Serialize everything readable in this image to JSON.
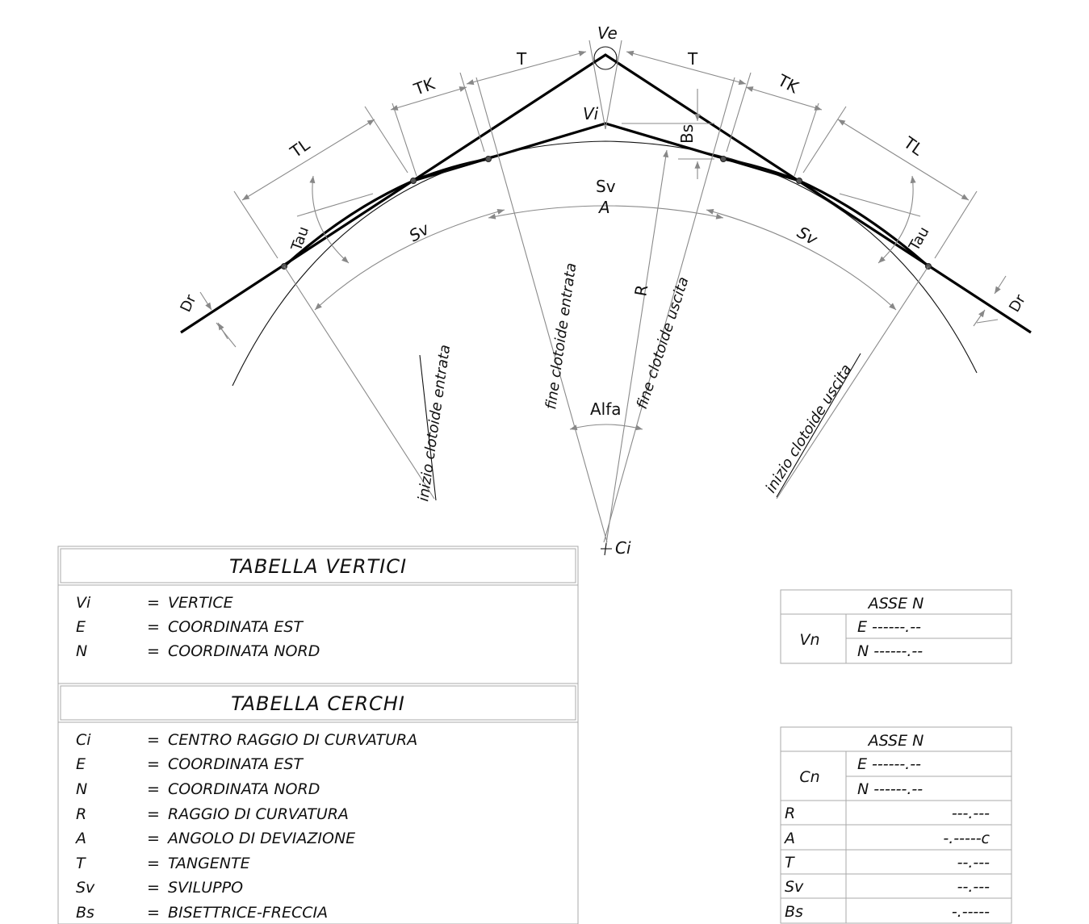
{
  "diagram": {
    "labels": {
      "ve": "Ve",
      "vi": "Vi",
      "t_left": "T",
      "t_right": "T",
      "tk_left": "TK",
      "tk_right": "TK",
      "tl_left": "TL",
      "tl_right": "TL",
      "bs": "Bs",
      "sv_top": "Sv",
      "a": "A",
      "sv_left": "Sv",
      "sv_right": "Sv",
      "tau_left": "Tau",
      "tau_right": "Tau",
      "dr_left": "Dr",
      "dr_right": "Dr",
      "r": "R",
      "alfa": "Alfa",
      "ci": "Ci",
      "inizio_entrata": "inizio clotoide entrata",
      "fine_entrata": "fine clotoide entrata",
      "fine_uscita": "fine clotoide uscita",
      "inizio_uscita": "inizio clotoide uscita"
    }
  },
  "tabella_vertici": {
    "title": "TABELLA VERTICI",
    "rows": [
      {
        "sym": "Vi",
        "eq": "=",
        "desc": "VERTICE"
      },
      {
        "sym": "E",
        "eq": "=",
        "desc": "COORDINATA EST"
      },
      {
        "sym": "N",
        "eq": "=",
        "desc": "COORDINATA NORD"
      }
    ]
  },
  "tabella_cerchi": {
    "title": "TABELLA CERCHI",
    "rows": [
      {
        "sym": "Ci",
        "eq": "=",
        "desc": "CENTRO RAGGIO DI CURVATURA"
      },
      {
        "sym": "E",
        "eq": "=",
        "desc": "COORDINATA EST"
      },
      {
        "sym": "N",
        "eq": "=",
        "desc": "COORDINATA NORD"
      },
      {
        "sym": "R",
        "eq": "=",
        "desc": "RAGGIO DI CURVATURA"
      },
      {
        "sym": "A",
        "eq": "=",
        "desc": "ANGOLO DI DEVIAZIONE"
      },
      {
        "sym": "T",
        "eq": "=",
        "desc": "TANGENTE"
      },
      {
        "sym": "Sv",
        "eq": "=",
        "desc": "SVILUPPO"
      },
      {
        "sym": "Bs",
        "eq": "=",
        "desc": "BISETTRICE-FRECCIA"
      }
    ]
  },
  "asse_vertice": {
    "title": "ASSE N",
    "label": "Vn",
    "e": "E ------.--",
    "n": "N ------.--"
  },
  "asse_cerchio": {
    "title": "ASSE N",
    "label": "Cn",
    "e": "E ------.--",
    "n": "N ------.--",
    "rows": [
      {
        "key": "R",
        "value": "---.---"
      },
      {
        "key": "A",
        "value": "-.-----c"
      },
      {
        "key": "T",
        "value": "--.---"
      },
      {
        "key": "Sv",
        "value": "--.---"
      },
      {
        "key": "Bs",
        "value": "-.-----"
      }
    ]
  }
}
